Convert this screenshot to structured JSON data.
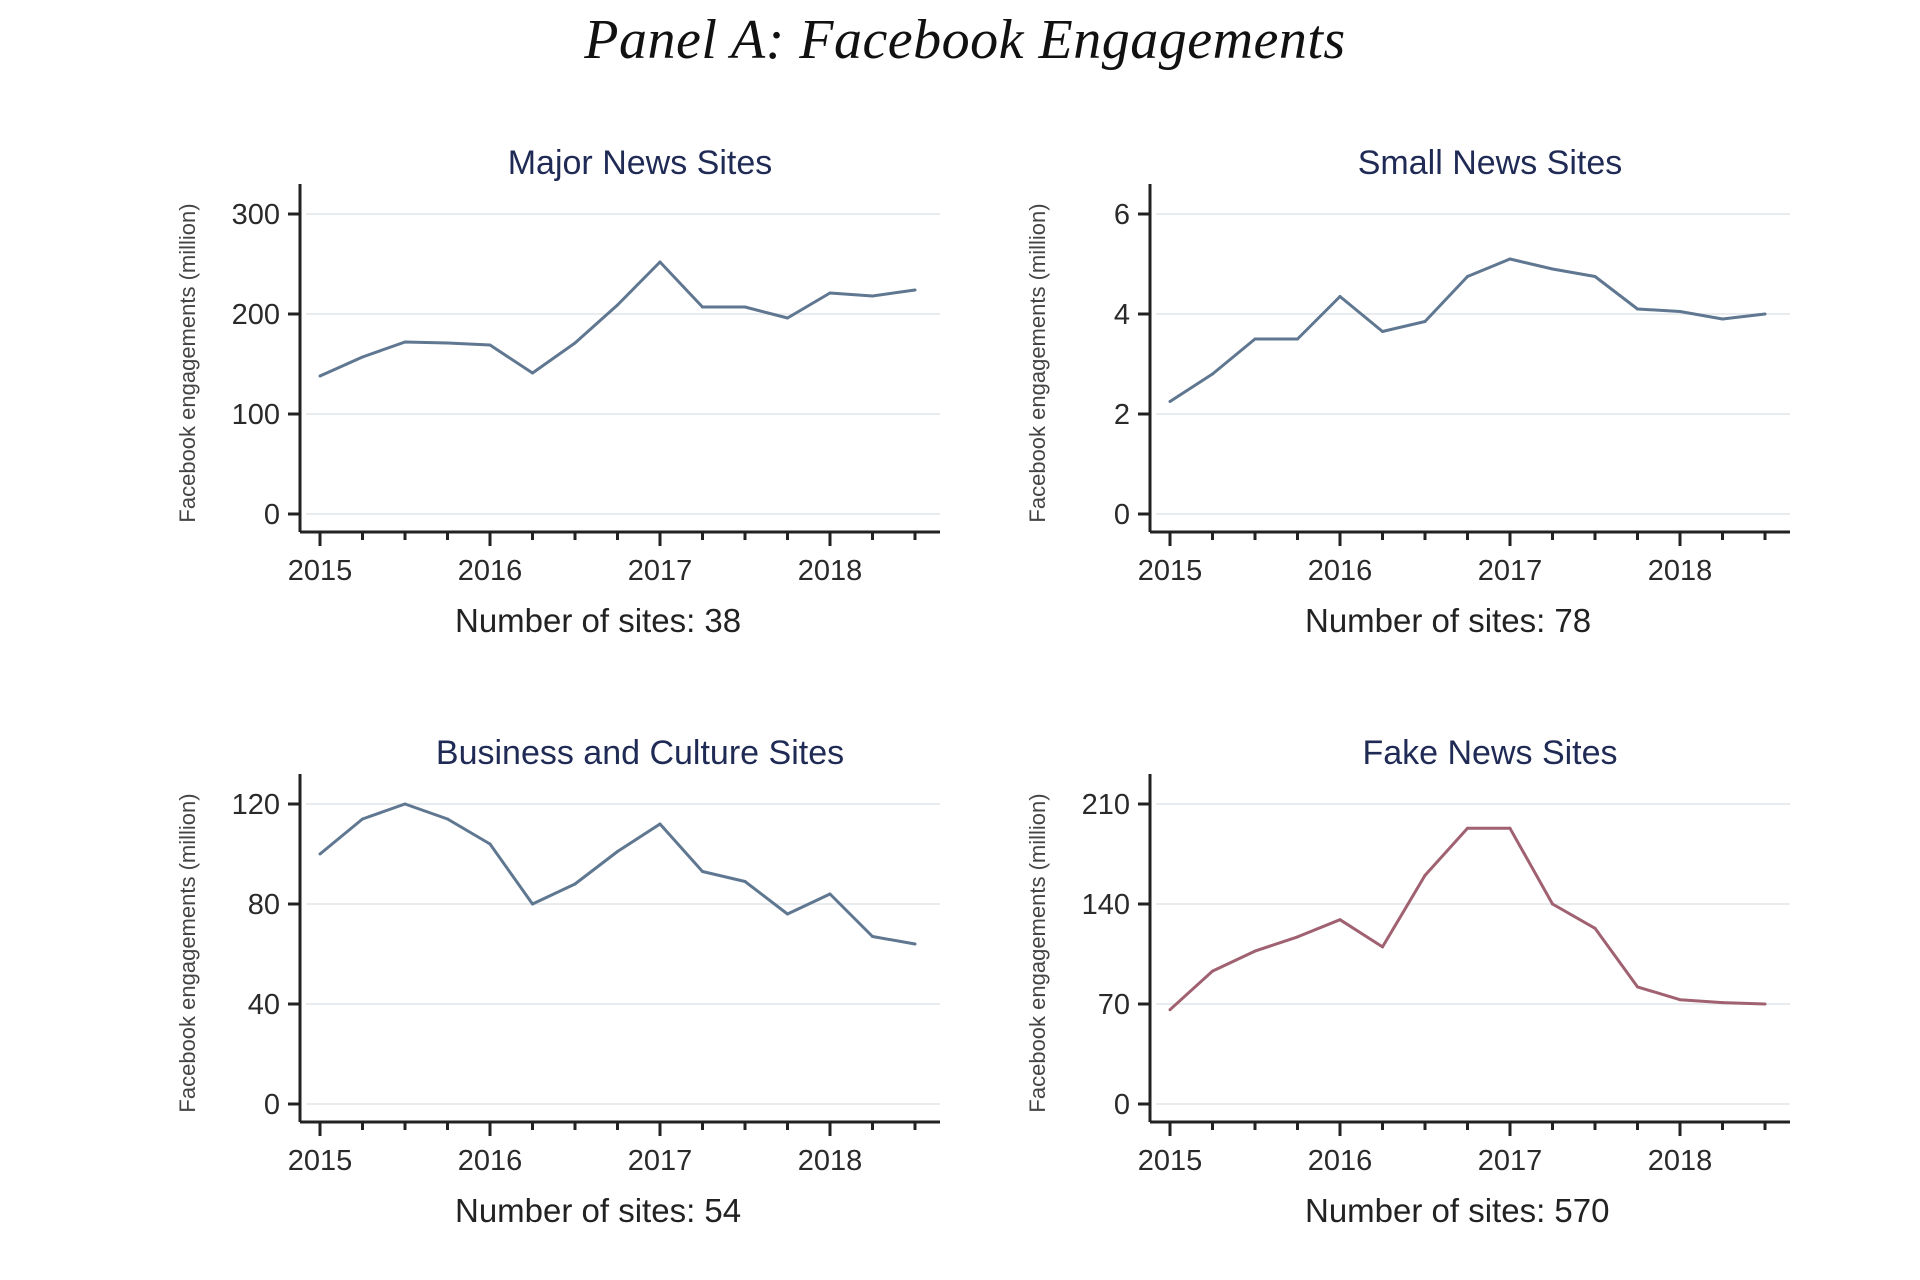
{
  "page_title": "Panel A: Facebook Engagements",
  "colors": {
    "main_series": "#5f7790",
    "fake_series": "#a06171"
  },
  "chart_data": [
    {
      "type": "line",
      "title": "Major News Sites",
      "ylabel": "Facebook engagements (million)",
      "note": "Number of sites: 38",
      "ylim": [
        0,
        300
      ],
      "yticks": [
        0,
        100,
        200,
        300
      ],
      "xticks": [
        2015,
        2016,
        2017,
        2018
      ],
      "xlim": [
        2015,
        2018.5
      ],
      "series": [
        {
          "color": "#5f7790",
          "x": [
            2015,
            2015.25,
            2015.5,
            2015.75,
            2016,
            2016.25,
            2016.5,
            2016.75,
            2017,
            2017.25,
            2017.5,
            2017.75,
            2018,
            2018.25,
            2018.5
          ],
          "values": [
            138,
            157,
            172,
            171,
            169,
            141,
            171,
            209,
            252,
            207,
            207,
            196,
            221,
            218,
            224
          ]
        }
      ]
    },
    {
      "type": "line",
      "title": "Small News Sites",
      "ylabel": "Facebook engagements (million)",
      "note": "Number of sites: 78",
      "ylim": [
        0,
        6
      ],
      "yticks": [
        0,
        2,
        4,
        6
      ],
      "xticks": [
        2015,
        2016,
        2017,
        2018
      ],
      "xlim": [
        2015,
        2018.5
      ],
      "series": [
        {
          "color": "#5f7790",
          "x": [
            2015,
            2015.25,
            2015.5,
            2015.75,
            2016,
            2016.25,
            2016.5,
            2016.75,
            2017,
            2017.25,
            2017.5,
            2017.75,
            2018,
            2018.25,
            2018.5
          ],
          "values": [
            2.25,
            2.8,
            3.5,
            3.5,
            4.35,
            3.65,
            3.85,
            4.75,
            5.1,
            4.9,
            4.75,
            4.1,
            4.05,
            3.9,
            4.0
          ]
        }
      ]
    },
    {
      "type": "line",
      "title": "Business and Culture Sites",
      "ylabel": "Facebook engagements (million)",
      "note": "Number of sites: 54",
      "ylim": [
        0,
        120
      ],
      "yticks": [
        0,
        40,
        80,
        120
      ],
      "xticks": [
        2015,
        2016,
        2017,
        2018
      ],
      "xlim": [
        2015,
        2018.5
      ],
      "series": [
        {
          "color": "#5f7790",
          "x": [
            2015,
            2015.25,
            2015.5,
            2015.75,
            2016,
            2016.25,
            2016.5,
            2016.75,
            2017,
            2017.25,
            2017.5,
            2017.75,
            2018,
            2018.25,
            2018.5
          ],
          "values": [
            100,
            114,
            120,
            114,
            104,
            80,
            88,
            101,
            112,
            93,
            89,
            76,
            84,
            67,
            64
          ]
        }
      ]
    },
    {
      "type": "line",
      "title": "Fake News Sites",
      "ylabel": "Facebook engagements (million)",
      "note": "Number of sites: 570",
      "ylim": [
        0,
        210
      ],
      "yticks": [
        0,
        70,
        140,
        210
      ],
      "xticks": [
        2015,
        2016,
        2017,
        2018
      ],
      "xlim": [
        2015,
        2018.5
      ],
      "series": [
        {
          "color": "#a06171",
          "x": [
            2015,
            2015.25,
            2015.5,
            2015.75,
            2016,
            2016.25,
            2016.5,
            2016.75,
            2017,
            2017.25,
            2017.5,
            2017.75,
            2018,
            2018.25,
            2018.5
          ],
          "values": [
            66,
            93,
            107,
            117,
            129,
            110,
            160,
            193,
            193,
            140,
            123,
            82,
            73,
            71,
            70
          ]
        }
      ]
    }
  ]
}
